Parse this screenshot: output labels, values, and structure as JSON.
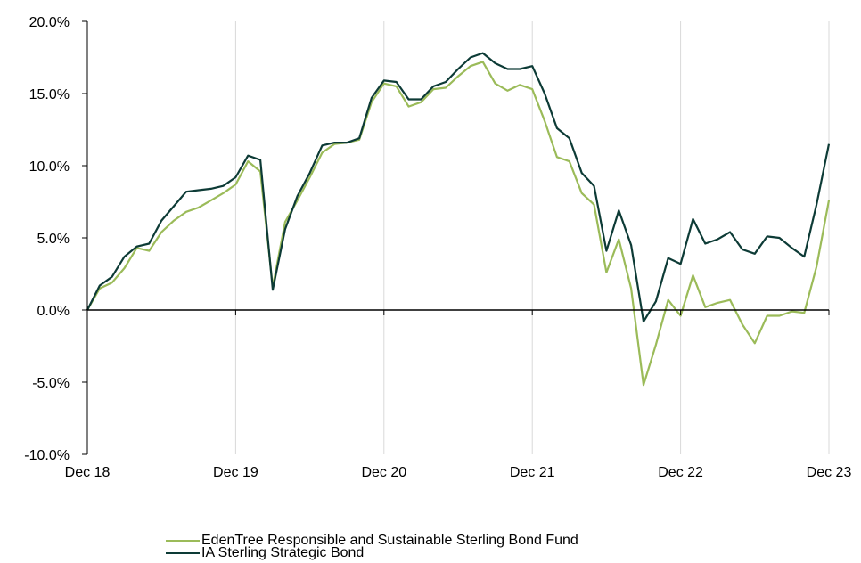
{
  "chart_data": {
    "type": "line",
    "title": "",
    "xlabel": "",
    "ylabel": "",
    "ylim": [
      -10,
      20
    ],
    "y_ticks": [
      20,
      15,
      10,
      5,
      0,
      -5,
      -10
    ],
    "y_tick_labels": [
      "20.0%",
      "15.0%",
      "10.0%",
      "5.0%",
      "0.0%",
      "-5.0%",
      "-10.0%"
    ],
    "x_ticks": [
      "Dec 18",
      "Dec 19",
      "Dec 20",
      "Dec 21",
      "Dec 22",
      "Dec 23"
    ],
    "grid": "vertical gridlines at x ticks",
    "legend_position": "bottom",
    "series": [
      {
        "name": "EdenTree Responsible and Sustainable Sterling Bond Fund",
        "color": "#9bbb59",
        "values": [
          0.0,
          1.5,
          1.9,
          2.9,
          4.3,
          4.1,
          5.4,
          6.2,
          6.8,
          7.1,
          7.6,
          8.1,
          8.7,
          10.3,
          9.6,
          1.6,
          6.1,
          7.6,
          9.2,
          10.9,
          11.5,
          11.6,
          11.8,
          14.4,
          15.7,
          15.5,
          14.1,
          14.4,
          15.3,
          15.4,
          16.2,
          16.9,
          17.2,
          15.7,
          15.2,
          15.6,
          15.3,
          13.1,
          10.6,
          10.3,
          8.1,
          7.3,
          2.6,
          4.9,
          1.5,
          -5.2,
          -2.4,
          0.7,
          -0.4,
          2.4,
          0.2,
          0.5,
          0.7,
          -1.0,
          -2.3,
          -0.4,
          -0.4,
          -0.1,
          -0.2,
          3.0,
          7.6
        ]
      },
      {
        "name": "IA Sterling Strategic Bond",
        "color": "#0d3b36",
        "values": [
          0.0,
          1.7,
          2.3,
          3.7,
          4.4,
          4.6,
          6.2,
          7.2,
          8.2,
          8.3,
          8.4,
          8.6,
          9.2,
          10.7,
          10.4,
          1.4,
          5.6,
          7.9,
          9.5,
          11.4,
          11.6,
          11.6,
          11.9,
          14.7,
          15.9,
          15.8,
          14.6,
          14.6,
          15.5,
          15.8,
          16.7,
          17.5,
          17.8,
          17.1,
          16.7,
          16.7,
          16.9,
          15.0,
          12.6,
          11.9,
          9.5,
          8.6,
          4.1,
          6.9,
          4.5,
          -0.8,
          0.6,
          3.6,
          3.2,
          6.3,
          4.6,
          4.9,
          5.4,
          4.2,
          3.9,
          5.1,
          5.0,
          4.3,
          3.7,
          7.3,
          11.5
        ]
      }
    ]
  }
}
